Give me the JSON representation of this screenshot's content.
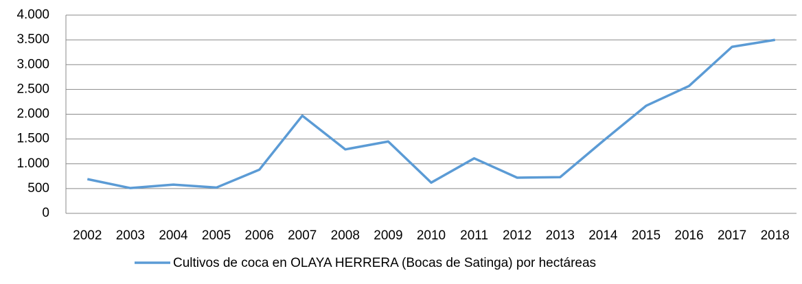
{
  "chart_data": {
    "type": "line",
    "categories": [
      "2002",
      "2003",
      "2004",
      "2005",
      "2006",
      "2007",
      "2008",
      "2009",
      "2010",
      "2011",
      "2012",
      "2013",
      "2014",
      "2015",
      "2016",
      "2017",
      "2018"
    ],
    "series": [
      {
        "name": "Cultivos de coca en OLAYA HERRERA (Bocas de Satinga) por hectáreas",
        "color": "#5b9bd5",
        "values": [
          690,
          510,
          580,
          520,
          880,
          1970,
          1290,
          1450,
          620,
          1110,
          720,
          730,
          1460,
          2170,
          2570,
          3360,
          3500
        ]
      }
    ],
    "ylim": [
      0,
      4000
    ],
    "yticks": [
      0,
      500,
      {
        "value": 1000,
        "label": "1.000"
      },
      {
        "value": 1500,
        "label": "1.500"
      },
      {
        "value": 2000,
        "label": "2.000"
      },
      {
        "value": 2500,
        "label": "2.500"
      },
      {
        "value": 3000,
        "label": "3.000"
      },
      {
        "value": 3500,
        "label": "3.500"
      },
      {
        "value": 4000,
        "label": "4.000"
      }
    ],
    "grid": true,
    "legend": "bottom"
  }
}
